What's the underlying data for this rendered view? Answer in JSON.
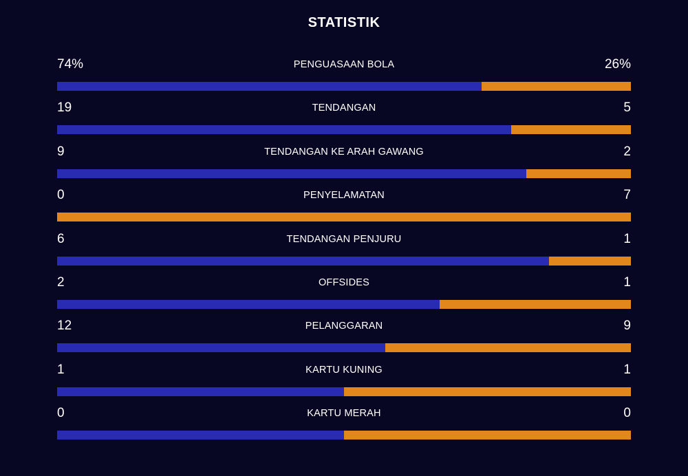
{
  "title": "STATISTIK",
  "colors": {
    "home": "#2a2bb3",
    "away": "#e1871b",
    "background": "#070724"
  },
  "stats": [
    {
      "label": "PENGUASAAN BOLA",
      "home": "74%",
      "away": "26%",
      "home_share": 0.74
    },
    {
      "label": "TENDANGAN",
      "home": "19",
      "away": "5",
      "home_share": 0.7917
    },
    {
      "label": "TENDANGAN KE ARAH GAWANG",
      "home": "9",
      "away": "2",
      "home_share": 0.8182
    },
    {
      "label": "PENYELAMATAN",
      "home": "0",
      "away": "7",
      "home_share": 0
    },
    {
      "label": "TENDANGAN PENJURU",
      "home": "6",
      "away": "1",
      "home_share": 0.8571
    },
    {
      "label": "OFFSIDES",
      "home": "2",
      "away": "1",
      "home_share": 0.6667
    },
    {
      "label": "PELANGGARAN",
      "home": "12",
      "away": "9",
      "home_share": 0.5714
    },
    {
      "label": "KARTU KUNING",
      "home": "1",
      "away": "1",
      "home_share": 0.5
    },
    {
      "label": "KARTU MERAH",
      "home": "0",
      "away": "0",
      "home_share": 0.5
    }
  ]
}
